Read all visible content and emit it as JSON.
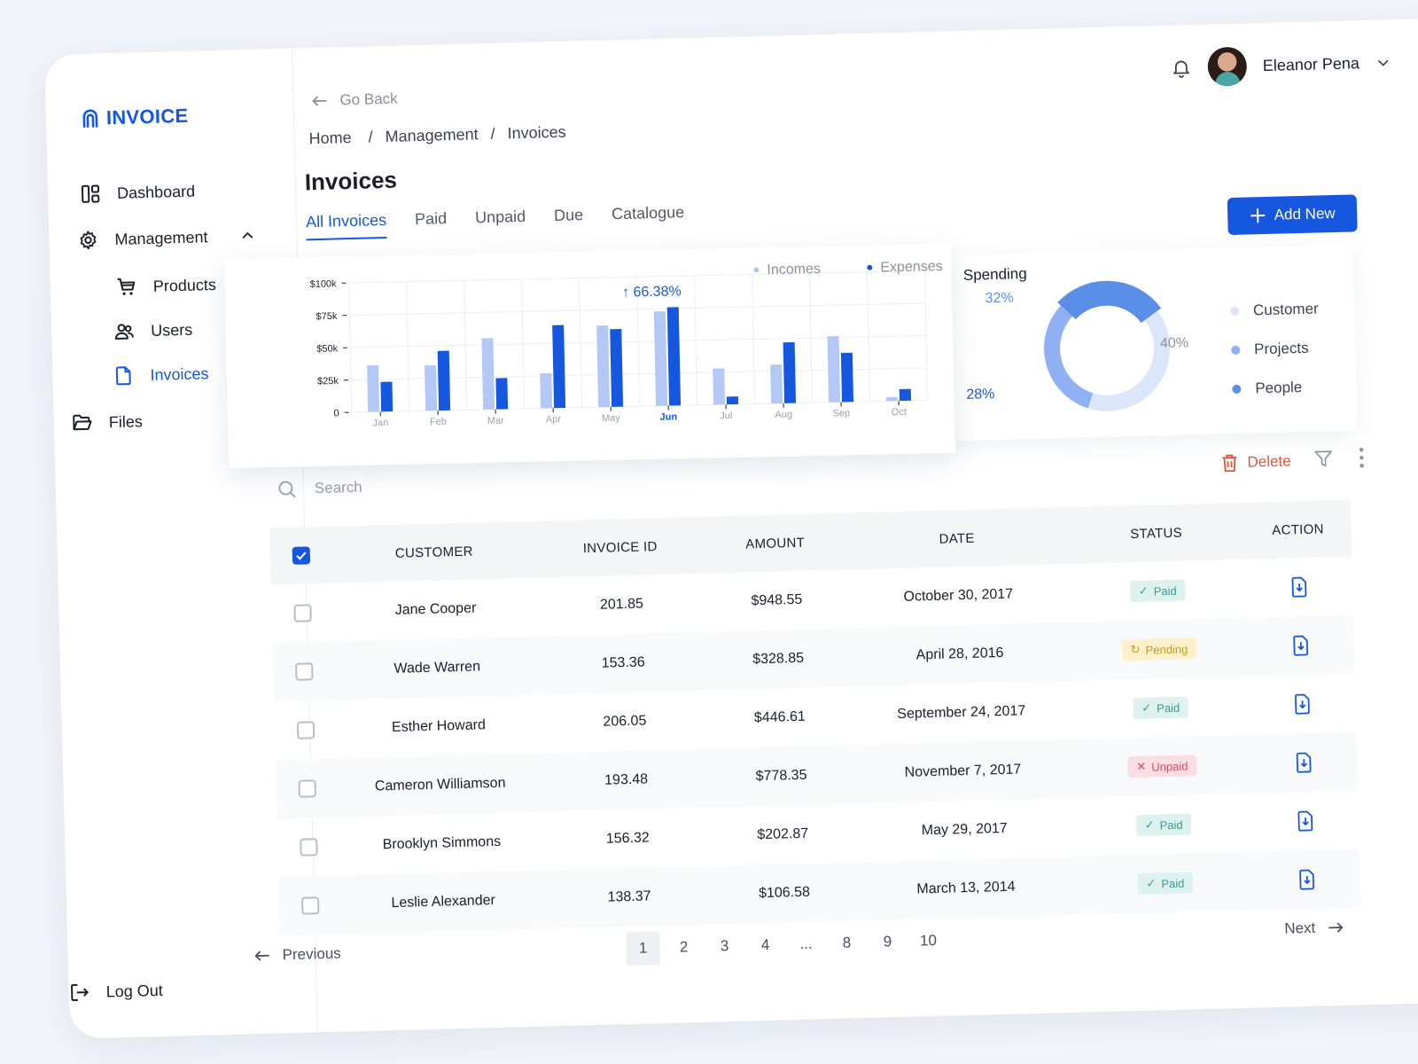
{
  "brand": {
    "name": "INVOICE",
    "color": "#1557de"
  },
  "sidebar": {
    "items": [
      {
        "label": "Dashboard",
        "icon": "dashboard-icon"
      },
      {
        "label": "Management",
        "icon": "gear-icon"
      },
      {
        "label": "Products",
        "icon": "cart-icon"
      },
      {
        "label": "Users",
        "icon": "users-icon"
      },
      {
        "label": "Invoices",
        "icon": "file-icon",
        "active": true
      },
      {
        "label": "Files",
        "icon": "folder-icon"
      }
    ],
    "logout": "Log Out"
  },
  "header": {
    "go_back": "Go Back",
    "breadcrumb": [
      "Home",
      "Management",
      "Invoices"
    ],
    "title": "Invoices",
    "tabs": [
      "All Invoices",
      "Paid",
      "Unpaid",
      "Due",
      "Catalogue"
    ],
    "active_tab": "All Invoices",
    "user_name": "Eleanor Pena",
    "add_new": "Add New"
  },
  "chart_data": [
    {
      "type": "bar",
      "categories": [
        "Jan",
        "Feb",
        "Mar",
        "Apr",
        "May",
        "Jun",
        "Jul",
        "Aug",
        "Sep",
        "Oct"
      ],
      "highlight_category": "Jun",
      "series": [
        {
          "name": "Incomes",
          "color": "#b3c8f5",
          "values": [
            36,
            35,
            55,
            27,
            63,
            73,
            28,
            30,
            51,
            3
          ]
        },
        {
          "name": "Expenses",
          "color": "#1557de",
          "values": [
            23,
            46,
            24,
            64,
            60,
            76,
            6,
            47,
            38,
            9
          ]
        }
      ],
      "y_ticks": [
        "$100k",
        "$75k",
        "$50k",
        "$25k",
        "0"
      ],
      "ylim": [
        0,
        100
      ],
      "annotation": "66.38%",
      "legend": "top-right"
    },
    {
      "type": "pie",
      "title": "Spending",
      "slices": [
        {
          "label": "Customer",
          "value": 40,
          "color": "#dbe6fb"
        },
        {
          "label": "Projects",
          "value": 32,
          "color": "#8fb0f2"
        },
        {
          "label": "People",
          "value": 28,
          "color": "#5b8ee8"
        }
      ],
      "value_labels": [
        "40%",
        "32%",
        "28%"
      ]
    }
  ],
  "table": {
    "search_placeholder": "Search",
    "delete": "Delete",
    "columns": [
      "CUSTOMER",
      "INVOICE ID",
      "AMOUNT",
      "DATE",
      "STATUS",
      "ACTION"
    ],
    "rows": [
      {
        "customer": "Jane Cooper",
        "id": "201.85",
        "amount": "$948.55",
        "date": "October 30, 2017",
        "status": "Paid"
      },
      {
        "customer": "Wade Warren",
        "id": "153.36",
        "amount": "$328.85",
        "date": "April 28, 2016",
        "status": "Pending"
      },
      {
        "customer": "Esther Howard",
        "id": "206.05",
        "amount": "$446.61",
        "date": "September 24, 2017",
        "status": "Paid"
      },
      {
        "customer": "Cameron Williamson",
        "id": "193.48",
        "amount": "$778.35",
        "date": "November 7, 2017",
        "status": "Unpaid"
      },
      {
        "customer": "Brooklyn Simmons",
        "id": "156.32",
        "amount": "$202.87",
        "date": "May 29, 2017",
        "status": "Paid"
      },
      {
        "customer": "Leslie Alexander",
        "id": "138.37",
        "amount": "$106.58",
        "date": "March 13, 2014",
        "status": "Paid"
      }
    ]
  },
  "pagination": {
    "previous": "Previous",
    "next": "Next",
    "pages": [
      "1",
      "2",
      "3",
      "4",
      "...",
      "8",
      "9",
      "10"
    ],
    "current": "1"
  }
}
